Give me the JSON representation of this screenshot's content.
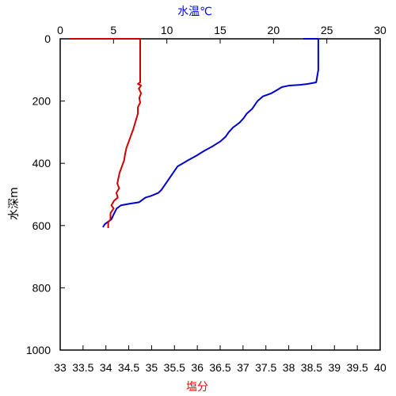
{
  "chart_data": {
    "type": "line",
    "title": "",
    "top_axis": {
      "label": "水温℃",
      "label_color": "#0000ff",
      "range": [
        0,
        30
      ],
      "ticks": [
        "0",
        "5",
        "10",
        "15",
        "20",
        "25",
        "30"
      ],
      "values": [
        0,
        5,
        10,
        15,
        20,
        25,
        30
      ]
    },
    "bottom_axis": {
      "label": "塩分",
      "label_color": "#ff0000",
      "range": [
        33,
        40
      ],
      "ticks": [
        "33",
        "33.5",
        "34",
        "34.5",
        "35",
        "35.5",
        "36",
        "36.5",
        "37",
        "37.5",
        "38",
        "38.5",
        "39",
        "39.5",
        "40"
      ],
      "values": [
        33,
        33.5,
        34,
        34.5,
        35,
        35.5,
        36,
        36.5,
        37,
        37.5,
        38,
        38.5,
        39,
        39.5,
        40
      ]
    },
    "y_axis": {
      "label": "水深m",
      "range": [
        0,
        1000
      ],
      "inverted": true,
      "ticks": [
        "0",
        "200",
        "400",
        "600",
        "800",
        "1000"
      ],
      "values": [
        0,
        200,
        400,
        600,
        800,
        1000
      ]
    },
    "grid": false,
    "series": [
      {
        "axis": "top",
        "color": "#0000cc",
        "points": [
          [
            22.8,
            0
          ],
          [
            24.2,
            0
          ],
          [
            24.2,
            100
          ],
          [
            24.0,
            140
          ],
          [
            23.2,
            145
          ],
          [
            22.5,
            148
          ],
          [
            21.5,
            150
          ],
          [
            20.8,
            155
          ],
          [
            20.3,
            165
          ],
          [
            19.8,
            175
          ],
          [
            19.0,
            185
          ],
          [
            18.5,
            200
          ],
          [
            18.0,
            225
          ],
          [
            17.5,
            240
          ],
          [
            17.2,
            255
          ],
          [
            16.8,
            270
          ],
          [
            16.2,
            285
          ],
          [
            15.8,
            300
          ],
          [
            15.5,
            315
          ],
          [
            15.0,
            330
          ],
          [
            14.3,
            345
          ],
          [
            13.5,
            360
          ],
          [
            12.8,
            375
          ],
          [
            12.0,
            390
          ],
          [
            11.5,
            400
          ],
          [
            11.0,
            410
          ],
          [
            10.7,
            425
          ],
          [
            10.4,
            440
          ],
          [
            10.1,
            455
          ],
          [
            9.8,
            470
          ],
          [
            9.5,
            485
          ],
          [
            9.2,
            495
          ],
          [
            8.5,
            505
          ],
          [
            8.0,
            510
          ],
          [
            7.6,
            520
          ],
          [
            7.4,
            525
          ],
          [
            6.5,
            530
          ],
          [
            5.7,
            535
          ],
          [
            5.3,
            545
          ],
          [
            5.0,
            565
          ],
          [
            4.8,
            580
          ],
          [
            4.2,
            595
          ],
          [
            4.0,
            605
          ]
        ]
      },
      {
        "axis": "bottom",
        "color": "#cc0000",
        "points": [
          [
            33.2,
            0
          ],
          [
            34.75,
            0
          ],
          [
            34.75,
            140
          ],
          [
            34.7,
            145
          ],
          [
            34.77,
            150
          ],
          [
            34.72,
            160
          ],
          [
            34.77,
            175
          ],
          [
            34.73,
            190
          ],
          [
            34.75,
            205
          ],
          [
            34.7,
            220
          ],
          [
            34.7,
            240
          ],
          [
            34.65,
            265
          ],
          [
            34.6,
            290
          ],
          [
            34.55,
            310
          ],
          [
            34.5,
            330
          ],
          [
            34.45,
            350
          ],
          [
            34.42,
            370
          ],
          [
            34.4,
            390
          ],
          [
            34.35,
            410
          ],
          [
            34.3,
            430
          ],
          [
            34.27,
            450
          ],
          [
            34.25,
            465
          ],
          [
            34.29,
            480
          ],
          [
            34.23,
            495
          ],
          [
            34.26,
            510
          ],
          [
            34.18,
            520
          ],
          [
            34.12,
            535
          ],
          [
            34.17,
            545
          ],
          [
            34.1,
            560
          ],
          [
            34.1,
            580
          ],
          [
            34.05,
            590
          ],
          [
            34.05,
            608
          ]
        ]
      }
    ]
  }
}
